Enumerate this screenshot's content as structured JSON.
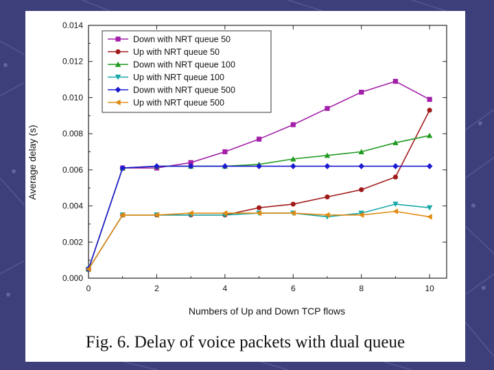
{
  "figure_caption": "Fig. 6. Delay of voice packets with dual queue",
  "chart_data": {
    "type": "line",
    "title": "",
    "xlabel": "Numbers of Up and Down TCP flows",
    "ylabel": "Average delay (s)",
    "xlim": [
      0,
      10.5
    ],
    "ylim": [
      0,
      0.014
    ],
    "x_ticks": [
      0,
      2,
      4,
      6,
      8,
      10
    ],
    "y_ticks": [
      0.0,
      0.002,
      0.004,
      0.006,
      0.008,
      0.01,
      0.012,
      0.014
    ],
    "y_tick_labels": [
      "0.000",
      "0.002",
      "0.004",
      "0.006",
      "0.008",
      "0.010",
      "0.012",
      "0.014"
    ],
    "grid": false,
    "legend_position": "top-left",
    "x": [
      0,
      1,
      2,
      3,
      4,
      5,
      6,
      7,
      8,
      9,
      10
    ],
    "series": [
      {
        "name": "Down with NRT queue 50",
        "color": "#a21fa8",
        "marker": "square",
        "values": [
          0.0005,
          0.0061,
          0.0061,
          0.0064,
          0.007,
          0.0077,
          0.0085,
          0.0094,
          0.0103,
          0.0109,
          0.0099
        ]
      },
      {
        "name": "Up with NRT queue 50",
        "color": "#a01a1a",
        "marker": "circle",
        "values": [
          0.0005,
          0.0035,
          0.0035,
          0.0035,
          0.0035,
          0.0039,
          0.0041,
          0.0045,
          0.0049,
          0.0056,
          0.0093
        ]
      },
      {
        "name": "Down with NRT queue 100",
        "color": "#1f9a1f",
        "marker": "triangle-up",
        "values": [
          0.0005,
          0.0061,
          0.0062,
          0.0062,
          0.0062,
          0.0063,
          0.0066,
          0.0068,
          0.007,
          0.0075,
          0.0079
        ]
      },
      {
        "name": "Up with NRT queue 100",
        "color": "#17a7a7",
        "marker": "triangle-down",
        "values": [
          0.0005,
          0.0035,
          0.0035,
          0.0035,
          0.0035,
          0.0036,
          0.0036,
          0.0034,
          0.0036,
          0.0041,
          0.0039
        ]
      },
      {
        "name": "Down with NRT queue 500",
        "color": "#1a1ad0",
        "marker": "diamond",
        "values": [
          0.0005,
          0.0061,
          0.0062,
          0.0062,
          0.0062,
          0.0062,
          0.0062,
          0.0062,
          0.0062,
          0.0062,
          0.0062
        ]
      },
      {
        "name": "Up with NRT queue 500",
        "color": "#e08a10",
        "marker": "triangle-left",
        "values": [
          0.0005,
          0.0035,
          0.0035,
          0.0036,
          0.0036,
          0.0036,
          0.0036,
          0.0035,
          0.0035,
          0.0037,
          0.0034
        ]
      }
    ]
  }
}
